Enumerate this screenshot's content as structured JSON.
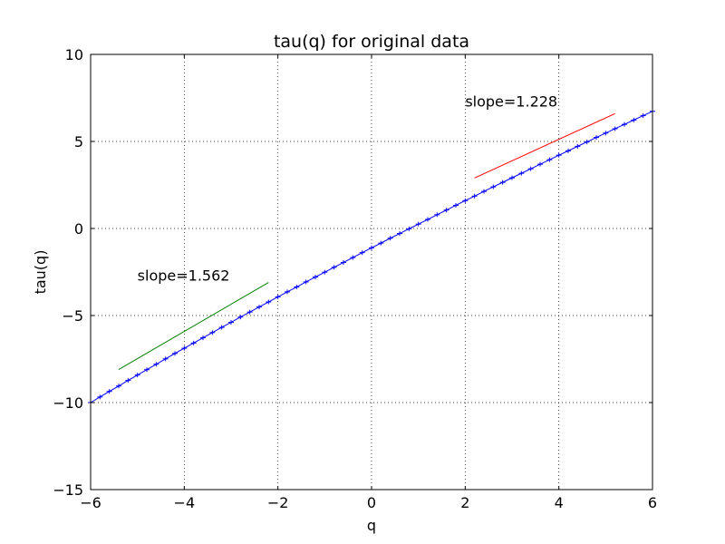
{
  "chart_data": {
    "type": "line",
    "title": "tau(q) for original data",
    "xlabel": "q",
    "ylabel": "tau(q)",
    "xlim": [
      -6,
      6
    ],
    "ylim": [
      -15,
      10
    ],
    "xticks": [
      -6,
      -4,
      -2,
      0,
      2,
      4,
      6
    ],
    "yticks": [
      -15,
      -10,
      -5,
      0,
      5,
      10
    ],
    "xtick_labels": [
      "−6",
      "−4",
      "−2",
      "0",
      "2",
      "4",
      "6"
    ],
    "ytick_labels": [
      "−15",
      "−10",
      "−5",
      "0",
      "5",
      "10"
    ],
    "grid": true,
    "series": [
      {
        "color": "#0000ff",
        "marker": "errorbar",
        "x": [
          -6.0,
          -5.8,
          -5.6,
          -5.4,
          -5.2,
          -5.0,
          -4.8,
          -4.6,
          -4.4,
          -4.2,
          -4.0,
          -3.8,
          -3.6,
          -3.4,
          -3.2,
          -3.0,
          -2.8,
          -2.6,
          -2.4,
          -2.2,
          -2.0,
          -1.8,
          -1.6,
          -1.4,
          -1.2,
          -1.0,
          -0.8,
          -0.6,
          -0.4,
          -0.2,
          0.0,
          0.2,
          0.4,
          0.6,
          0.8,
          1.0,
          1.2,
          1.4,
          1.6,
          1.8,
          2.0,
          2.2,
          2.4,
          2.6,
          2.8,
          3.0,
          3.2,
          3.4,
          3.6,
          3.8,
          4.0,
          4.2,
          4.4,
          4.6,
          4.8,
          5.0,
          5.2,
          5.4,
          5.6,
          5.8,
          6.0
        ],
        "y": [
          -10.0,
          -9.68,
          -9.36,
          -9.05,
          -8.73,
          -8.42,
          -8.11,
          -7.8,
          -7.49,
          -7.18,
          -6.88,
          -6.58,
          -6.28,
          -5.98,
          -5.68,
          -5.39,
          -5.09,
          -4.8,
          -4.51,
          -4.22,
          -3.93,
          -3.64,
          -3.36,
          -3.07,
          -2.79,
          -2.51,
          -2.23,
          -1.95,
          -1.67,
          -1.39,
          -1.11,
          -0.84,
          -0.56,
          -0.29,
          -0.02,
          0.25,
          0.52,
          0.79,
          1.06,
          1.33,
          1.6,
          1.86,
          2.13,
          2.39,
          2.65,
          2.91,
          3.17,
          3.43,
          3.69,
          3.95,
          4.21,
          4.46,
          4.72,
          4.97,
          5.23,
          5.48,
          5.73,
          5.98,
          6.23,
          6.48,
          6.73
        ]
      },
      {
        "color": "#008000",
        "x": [
          -5.4,
          -2.2
        ],
        "y": [
          -8.1,
          -3.1
        ]
      },
      {
        "color": "#ff0000",
        "x": [
          2.2,
          5.2
        ],
        "y": [
          2.9,
          6.6
        ]
      }
    ],
    "annotations": [
      {
        "text": "slope=1.562",
        "x": -5.0,
        "y": -3.0
      },
      {
        "text": "slope=1.228",
        "x": 2.0,
        "y": 7.0
      }
    ]
  }
}
